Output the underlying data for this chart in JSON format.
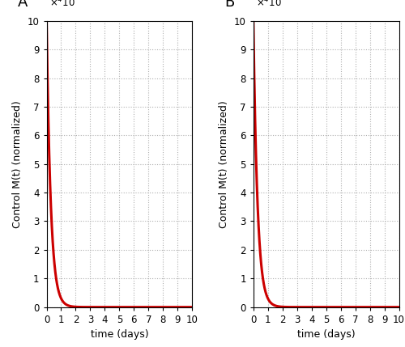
{
  "title_A": "A",
  "title_B": "B",
  "xlabel": "time (days)",
  "ylabel": "Control M(t) (normalized)",
  "xlim": [
    0,
    10
  ],
  "ylim": [
    0,
    10
  ],
  "yticks": [
    0,
    1,
    2,
    3,
    4,
    5,
    6,
    7,
    8,
    9,
    10
  ],
  "xticks": [
    0,
    1,
    2,
    3,
    4,
    5,
    6,
    7,
    8,
    9,
    10
  ],
  "line_color": "#cc0000",
  "line_width": 2.2,
  "background_color": "#ffffff",
  "grid_color": "#b0b0b0",
  "decay_rate_A": 3.5,
  "decay_rate_B": 3.5,
  "initial_value": 10,
  "panel_label_fontsize": 13,
  "axis_label_fontsize": 9,
  "tick_fontsize": 8.5
}
